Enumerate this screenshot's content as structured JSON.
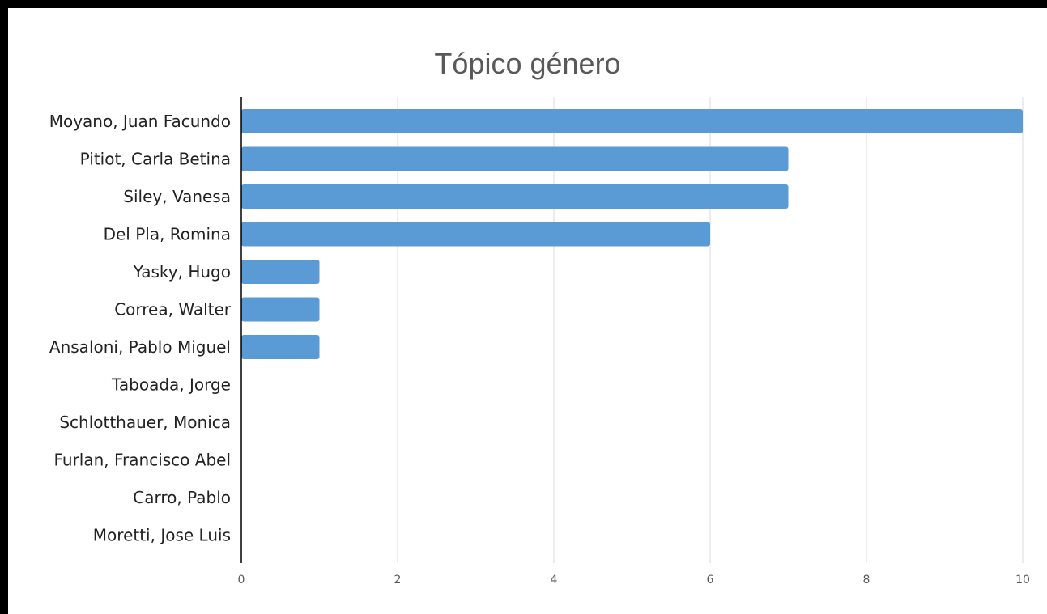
{
  "chart_data": {
    "type": "bar",
    "orientation": "horizontal",
    "title": "Tópico género",
    "categories": [
      "Moyano, Juan Facundo",
      "Pitiot, Carla Betina",
      "Siley, Vanesa",
      "Del Pla, Romina",
      "Yasky, Hugo",
      "Correa, Walter",
      "Ansaloni, Pablo Miguel",
      "Taboada, Jorge",
      "Schlotthauer, Monica",
      "Furlan, Francisco Abel",
      "Carro, Pablo",
      "Moretti, Jose Luis"
    ],
    "values": [
      10,
      7,
      7,
      6,
      1,
      1,
      1,
      0,
      0,
      0,
      0,
      0
    ],
    "xlim": [
      0,
      10
    ],
    "xticks": [
      "0",
      "2",
      "4",
      "6",
      "8",
      "10"
    ],
    "xlabel": "",
    "ylabel": "",
    "grid": true,
    "legend": "none",
    "bar_color": "#5b9bd5",
    "gridline_color": "#d9d9d9",
    "axis_color": "#000000"
  }
}
